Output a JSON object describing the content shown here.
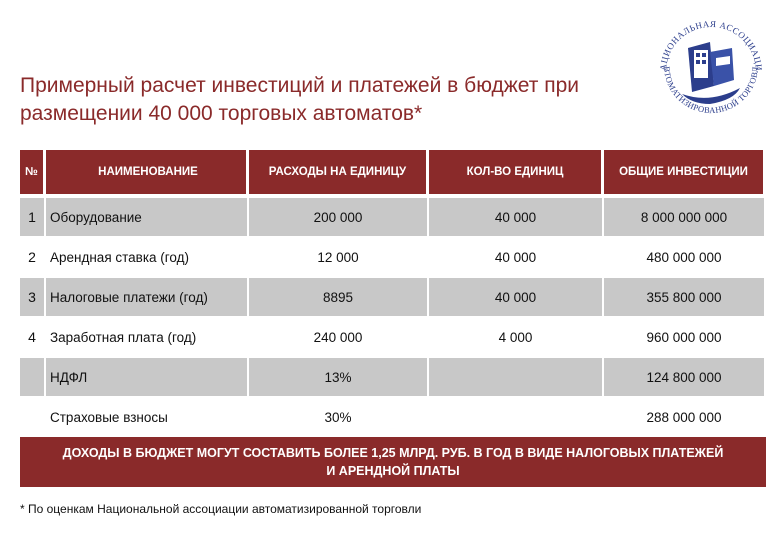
{
  "title_line1": "Примерный расчет инвестиций и платежей в бюджет при",
  "title_line2": "размещении 40 000 торговых автоматов*",
  "logo": {
    "text_top": "НАЦИОНАЛЬНАЯ АССОЦИАЦИЯ",
    "text_bottom": "АВТОМАТИЗИРОВАННОЙ ТОРГОВЛИ"
  },
  "headers": {
    "num": "№",
    "name": "НАИМЕНОВАНИЕ",
    "cost": "РАСХОДЫ НА ЕДИНИЦУ",
    "qty": "КОЛ-ВО ЕДИНИЦ",
    "total": "ОБЩИЕ ИНВЕСТИЦИИ"
  },
  "rows": [
    {
      "num": "1",
      "name": "Оборудование",
      "cost": "200 000",
      "qty": "40 000",
      "total": "8 000 000 000"
    },
    {
      "num": "2",
      "name": "Арендная ставка (год)",
      "cost": "12 000",
      "qty": "40 000",
      "total": "480 000 000"
    },
    {
      "num": "3",
      "name": "Налоговые платежи (год)",
      "cost": "8895",
      "qty": "40 000",
      "total": "355 800 000"
    },
    {
      "num": "4",
      "name": "Заработная плата (год)",
      "cost": "240 000",
      "qty": "4 000",
      "total": "960 000 000"
    },
    {
      "num": "",
      "name": "НДФЛ",
      "cost": "13%",
      "qty": "",
      "total": "124 800 000"
    },
    {
      "num": "",
      "name": "Страховые взносы",
      "cost": "30%",
      "qty": "",
      "total": "288 000 000"
    }
  ],
  "banner": "ДОХОДЫ В БЮДЖЕТ МОГУТ СОСТАВИТЬ БОЛЕЕ 1,25 МЛРД. РУБ. В ГОД В ВИДЕ НАЛОГОВЫХ ПЛАТЕЖЕЙ И АРЕНДНОЙ ПЛАТЫ",
  "footnote": "* По оценкам Национальной ассоциации автоматизированной торговли",
  "colors": {
    "accent": "#8a2a2a",
    "row_gray": "#c8c8c8",
    "logo_blue": "#2c3e8c"
  }
}
